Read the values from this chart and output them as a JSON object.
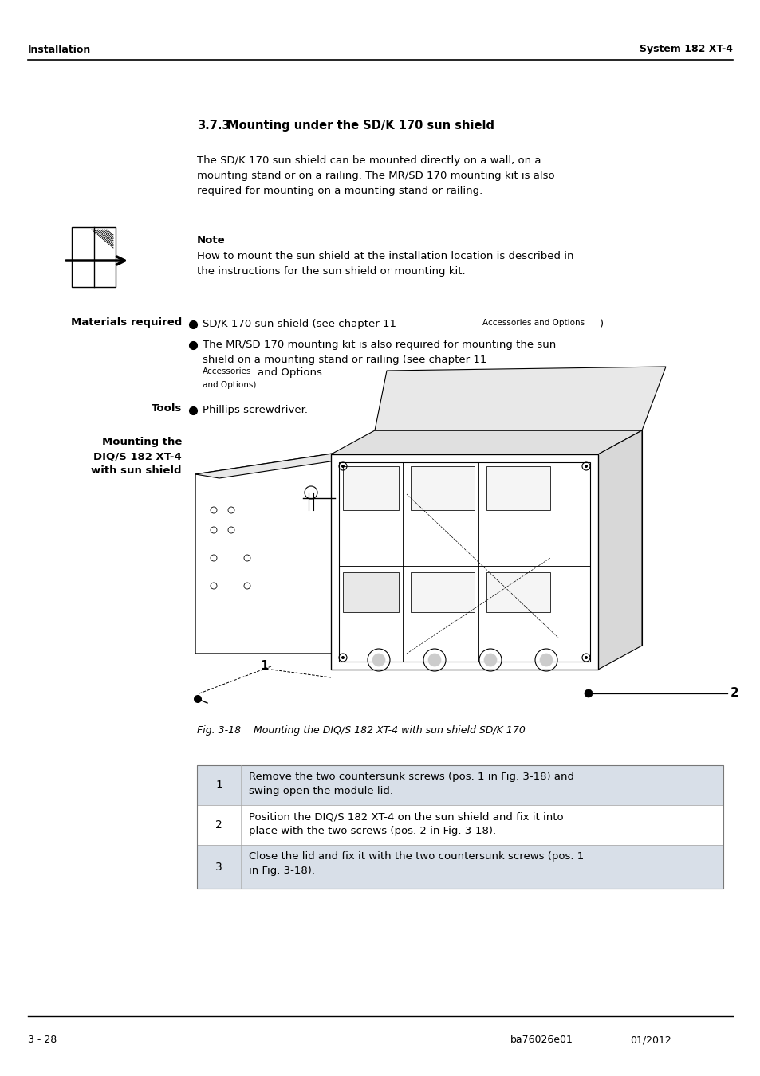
{
  "header_left": "Installation",
  "header_right": "System 182 XT-4",
  "footer_left": "3 - 28",
  "footer_center": "ba76026e01",
  "footer_right": "01/2012",
  "section_number": "3.7.3",
  "section_title": "  Mounting under the SD/K 170 sun shield",
  "intro_text": "The SD/K 170 sun shield can be mounted directly on a wall, on a\nmounting stand or on a railing. The MR/SD 170 mounting kit is also\nrequired for mounting on a mounting stand or railing.",
  "note_title": "Note",
  "note_text": "How to mount the sun shield at the installation location is described in\nthe instructions for the sun shield or mounting kit.",
  "materials_label": "Materials required",
  "mat_item1": "SD/K 170 sun shield (see chapter 11 ",
  "mat_item1_caps": "Accessories and Options",
  "mat_item1_end": ")",
  "mat_item2a": "The MR/SD 170 mounting kit is also required for mounting the sun",
  "mat_item2b": "shield on a mounting stand or railing (see chapter 11 ",
  "mat_item2c": "Accessories",
  "mat_item2d": "and Options",
  "mat_item2e": ").",
  "tools_label": "Tools",
  "tools_item": "Phillips screwdriver.",
  "mounting_label_line1": "Mounting the",
  "mounting_label_line2": "DIQ/S 182 XT-4",
  "mounting_label_line3": "with sun shield",
  "fig_caption_plain": "Fig. 3-18",
  "fig_caption_italic": "  Mounting the DIQ/S 182 XT-4 with sun shield SD/K 170",
  "steps": [
    {
      "num": "1",
      "text": "Remove the two countersunk screws (pos. 1 in Fig. 3-18) and\nswing open the module lid."
    },
    {
      "num": "2",
      "text": "Position the DIQ/S 182 XT-4 on the sun shield and fix it into\nplace with the two screws (pos. 2 in Fig. 3-18)."
    },
    {
      "num": "3",
      "text": "Close the lid and fix it with the two countersunk screws (pos. 1\nin Fig. 3-18)."
    }
  ],
  "bg_color": "#ffffff",
  "text_color": "#000000",
  "line_color": "#000000",
  "table_bg_1": "#d8dfe8",
  "table_bg_2": "#ffffff",
  "table_border": "#aaaaaa"
}
